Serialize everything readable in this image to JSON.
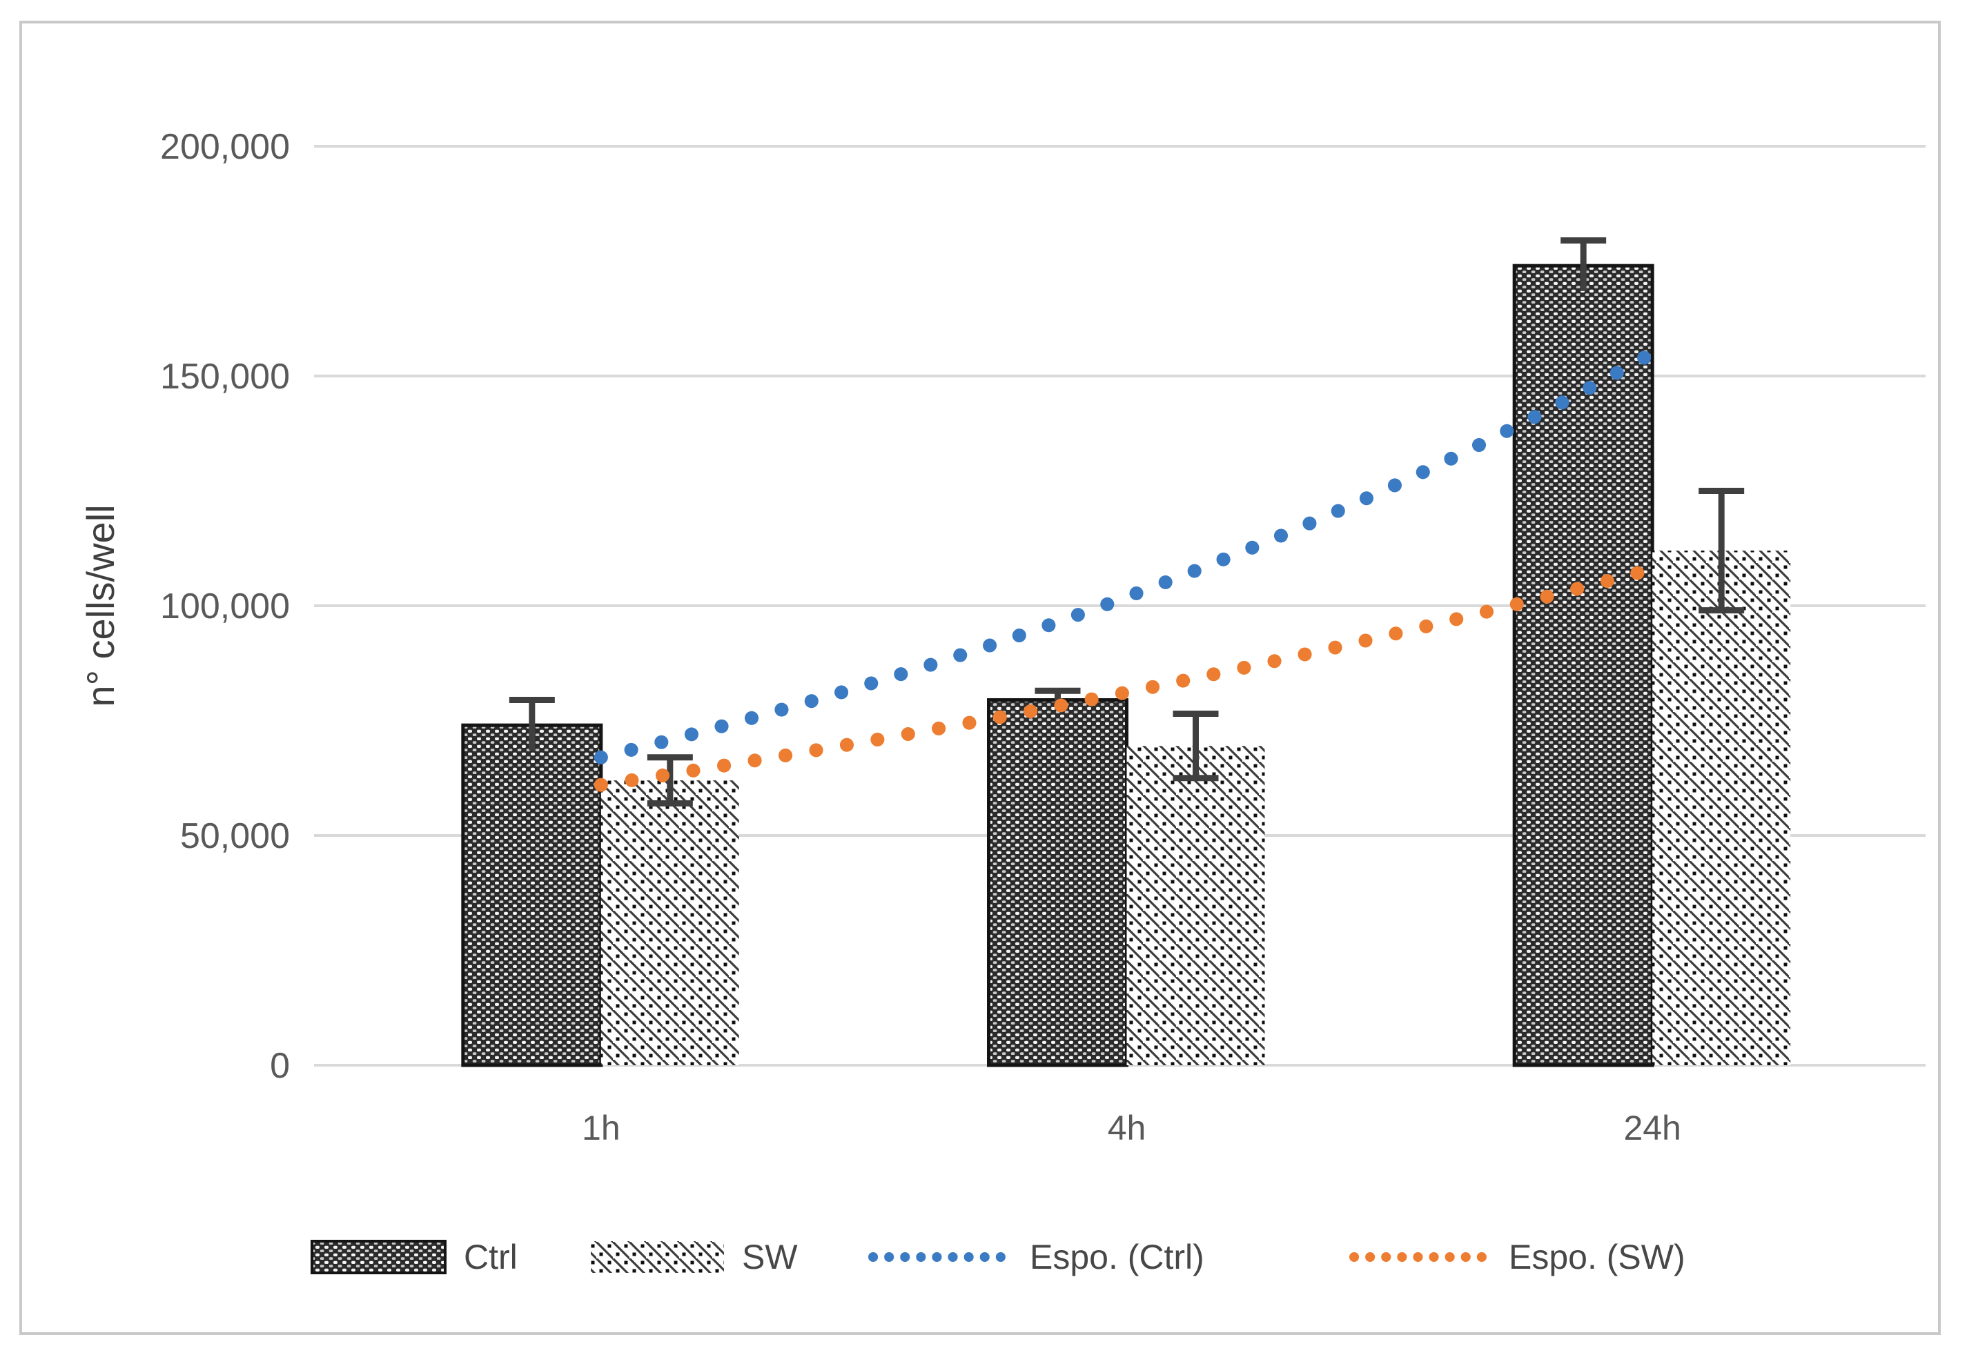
{
  "figure": {
    "background": "#ffffff",
    "frame_border_color": "#c9c9c9"
  },
  "chart_data": {
    "type": "bar",
    "title": "",
    "categories": [
      "1h",
      "4h",
      "24h"
    ],
    "series": [
      {
        "name": "Ctrl",
        "values": [
          74000,
          79500,
          174000
        ],
        "errors": [
          5500,
          2000,
          5500
        ],
        "pattern": "dot-grid",
        "color": "#262626"
      },
      {
        "name": "SW",
        "values": [
          62000,
          69500,
          112000
        ],
        "errors": [
          5000,
          7000,
          13000
        ],
        "pattern": "diagonal-hatch",
        "color": "#2f2f2f"
      }
    ],
    "trendlines": [
      {
        "name": "Espo. (Ctrl)",
        "series": "Ctrl",
        "shape": "exponential",
        "start_value": 67000,
        "end_value": 155000,
        "style": "dotted",
        "color": "#3b7bc4"
      },
      {
        "name": "Espo. (SW)",
        "series": "SW",
        "shape": "exponential",
        "start_value": 61000,
        "end_value": 108000,
        "style": "dotted",
        "color": "#ed7d31"
      }
    ],
    "ylabel": "n° cells/well",
    "xlabel": "",
    "ylim": [
      0,
      200000
    ],
    "ytick_step": 50000,
    "ytick_values": [
      0,
      50000,
      100000,
      150000,
      200000
    ],
    "ytick_labels": [
      "0",
      "50,000",
      "100,000",
      "150,000",
      "200,000"
    ],
    "grid": true,
    "gridline_color": "#d9d9d9",
    "axis_text_color": "#595959",
    "legend_text_color": "#474747",
    "error_bar_color": "#3f3f3f",
    "legend_position": "bottom",
    "legend": [
      "Ctrl",
      "SW",
      "Espo. (Ctrl)",
      "Espo. (SW)"
    ]
  }
}
